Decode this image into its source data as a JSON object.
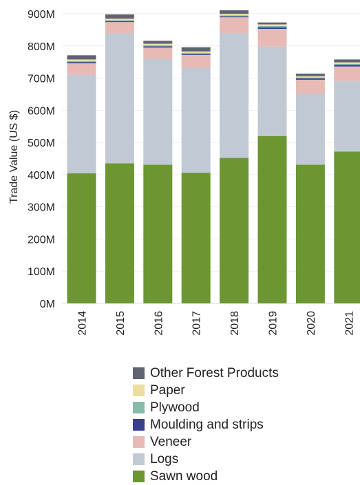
{
  "chart_data": {
    "type": "bar",
    "stacked": true,
    "ylabel": "Trade Value (US $)",
    "ylim": [
      0,
      900
    ],
    "yticks": [
      0,
      100,
      200,
      300,
      400,
      500,
      600,
      700,
      800,
      900
    ],
    "ytick_labels": [
      "0M",
      "100M",
      "200M",
      "300M",
      "400M",
      "500M",
      "600M",
      "700M",
      "800M",
      "900M"
    ],
    "categories": [
      "2014",
      "2015",
      "2016",
      "2017",
      "2018",
      "2019",
      "2020",
      "2021"
    ],
    "grid": true,
    "legend_position": "bottom",
    "series": [
      {
        "name": "Sawn wood",
        "color": "#6b9632",
        "values": [
          404,
          435,
          431,
          406,
          452,
          520,
          431,
          472
        ]
      },
      {
        "name": "Logs",
        "color": "#c0c9d4",
        "values": [
          306,
          404,
          328,
          326,
          388,
          278,
          221,
          219
        ]
      },
      {
        "name": "Veneer",
        "color": "#e8bab5",
        "values": [
          36,
          35,
          36,
          40,
          49,
          55,
          43,
          45
        ]
      },
      {
        "name": "Moulding and strips",
        "color": "#3b3f93",
        "values": [
          4,
          3,
          4,
          3,
          3,
          5,
          4,
          5
        ]
      },
      {
        "name": "Plywood",
        "color": "#84bba9",
        "values": [
          3,
          3,
          3,
          3,
          3,
          4,
          3,
          3
        ]
      },
      {
        "name": "Paper",
        "color": "#eddd9f",
        "values": [
          5,
          5,
          5,
          5,
          5,
          5,
          4,
          5
        ]
      },
      {
        "name": "Other Forest Products",
        "color": "#5f646e",
        "values": [
          13,
          13,
          9,
          13,
          11,
          6,
          8,
          9
        ]
      }
    ]
  }
}
